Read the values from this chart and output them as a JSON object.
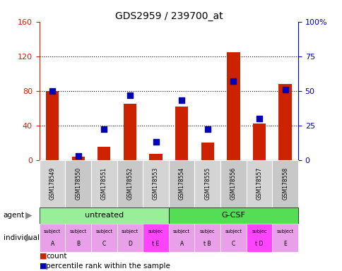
{
  "title": "GDS2959 / 239700_at",
  "samples": [
    "GSM178549",
    "GSM178550",
    "GSM178551",
    "GSM178552",
    "GSM178553",
    "GSM178554",
    "GSM178555",
    "GSM178556",
    "GSM178557",
    "GSM178558"
  ],
  "counts": [
    80,
    4,
    15,
    65,
    7,
    62,
    20,
    125,
    42,
    88
  ],
  "percentile_ranks": [
    50,
    3,
    22,
    47,
    13,
    43,
    22,
    57,
    30,
    51
  ],
  "ylim_left": [
    0,
    160
  ],
  "ylim_right": [
    0,
    100
  ],
  "yticks_left": [
    0,
    40,
    80,
    120,
    160
  ],
  "yticks_right": [
    0,
    25,
    50,
    75,
    100
  ],
  "yticklabels_left": [
    "0",
    "40",
    "80",
    "120",
    "160"
  ],
  "yticklabels_right": [
    "0",
    "25",
    "50",
    "75",
    "100%"
  ],
  "bar_color": "#CC2200",
  "dot_color": "#0000BB",
  "bar_width": 0.5,
  "dot_size": 35,
  "left_axis_color": "#CC2200",
  "right_axis_color": "#0000BB",
  "agent_groups": [
    {
      "label": "untreated",
      "start": 0,
      "end": 5,
      "color": "#99EE99"
    },
    {
      "label": "G-CSF",
      "start": 5,
      "end": 10,
      "color": "#55DD55"
    }
  ],
  "indiv_labels": [
    [
      "subject",
      "A"
    ],
    [
      "subject",
      "B"
    ],
    [
      "subject",
      "C"
    ],
    [
      "subject",
      "D"
    ],
    [
      "subjec",
      "t E"
    ],
    [
      "subject",
      "A"
    ],
    [
      "subjec",
      "t B"
    ],
    [
      "subject",
      "C"
    ],
    [
      "subjec",
      "t D"
    ],
    [
      "subject",
      "E"
    ]
  ],
  "indiv_colors": [
    "#E8A0E8",
    "#E8A0E8",
    "#E8A0E8",
    "#E8A0E8",
    "#FF44FF",
    "#E8A0E8",
    "#E8A0E8",
    "#E8A0E8",
    "#FF44FF",
    "#E8A0E8"
  ],
  "sample_bg_even": "#D4D4D4",
  "sample_bg_odd": "#C8C8C8",
  "legend_count_color": "#CC2200",
  "legend_pct_color": "#0000BB"
}
